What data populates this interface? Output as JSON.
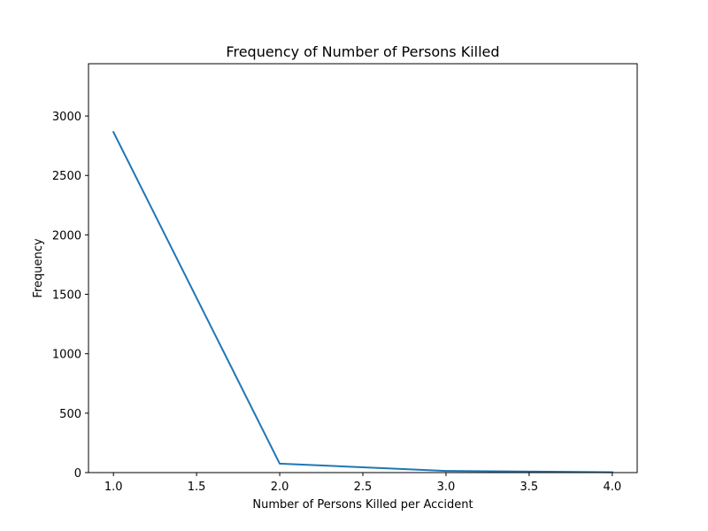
{
  "chart_data": {
    "type": "line",
    "title": "Frequency of Number of Persons Killed",
    "xlabel": "Number of Persons Killed per Accident",
    "ylabel": "Frequency",
    "xlim": [
      0.85,
      4.15
    ],
    "ylim": [
      0,
      3440
    ],
    "xticks": [
      1.0,
      1.5,
      2.0,
      2.5,
      3.0,
      3.5,
      4.0
    ],
    "xtick_labels": [
      "1.0",
      "1.5",
      "2.0",
      "2.5",
      "3.0",
      "3.5",
      "4.0"
    ],
    "yticks": [
      0,
      500,
      1000,
      1500,
      2000,
      2500,
      3000
    ],
    "ytick_labels": [
      "0",
      "500",
      "1000",
      "1500",
      "2000",
      "2500",
      "3000"
    ],
    "grid": false,
    "series": [
      {
        "x": [
          1,
          2,
          3,
          4
        ],
        "values": [
          2865,
          75,
          14,
          3
        ],
        "color": "#1f77b4"
      }
    ]
  }
}
